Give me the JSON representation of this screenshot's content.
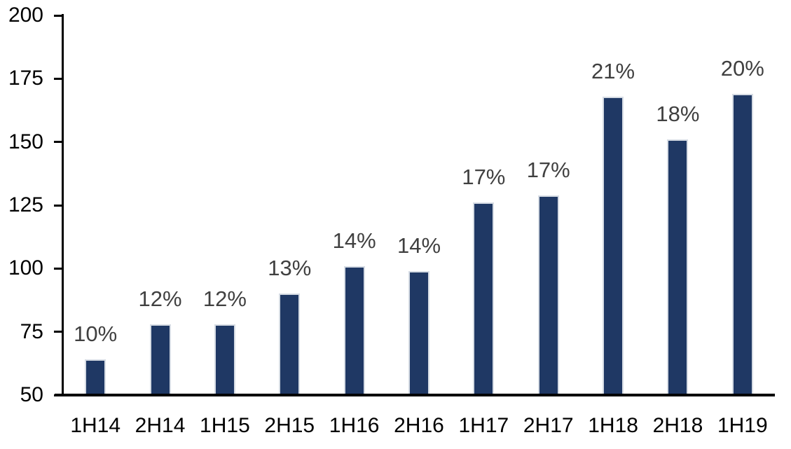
{
  "chart_data": {
    "type": "bar",
    "title": "",
    "xlabel": "",
    "ylabel": "",
    "categories": [
      "1H14",
      "2H14",
      "1H15",
      "2H15",
      "1H16",
      "2H16",
      "1H17",
      "2H17",
      "1H18",
      "2H18",
      "1H19"
    ],
    "values": [
      64,
      78,
      78,
      90,
      101,
      99,
      126,
      129,
      168,
      151,
      169
    ],
    "data_labels": [
      "10%",
      "12%",
      "12%",
      "13%",
      "14%",
      "14%",
      "17%",
      "17%",
      "21%",
      "18%",
      "20%"
    ],
    "ylim": [
      50,
      200
    ],
    "ytick_step": 25,
    "yticks": [
      50,
      75,
      100,
      125,
      150,
      175,
      200
    ],
    "grid": false,
    "legend": "none",
    "colors": {
      "bar_fill": "#1F3864",
      "bar_border": "#D6DCE4",
      "data_label": "#404040",
      "axis": "#000000",
      "background": "#FFFFFF"
    }
  }
}
